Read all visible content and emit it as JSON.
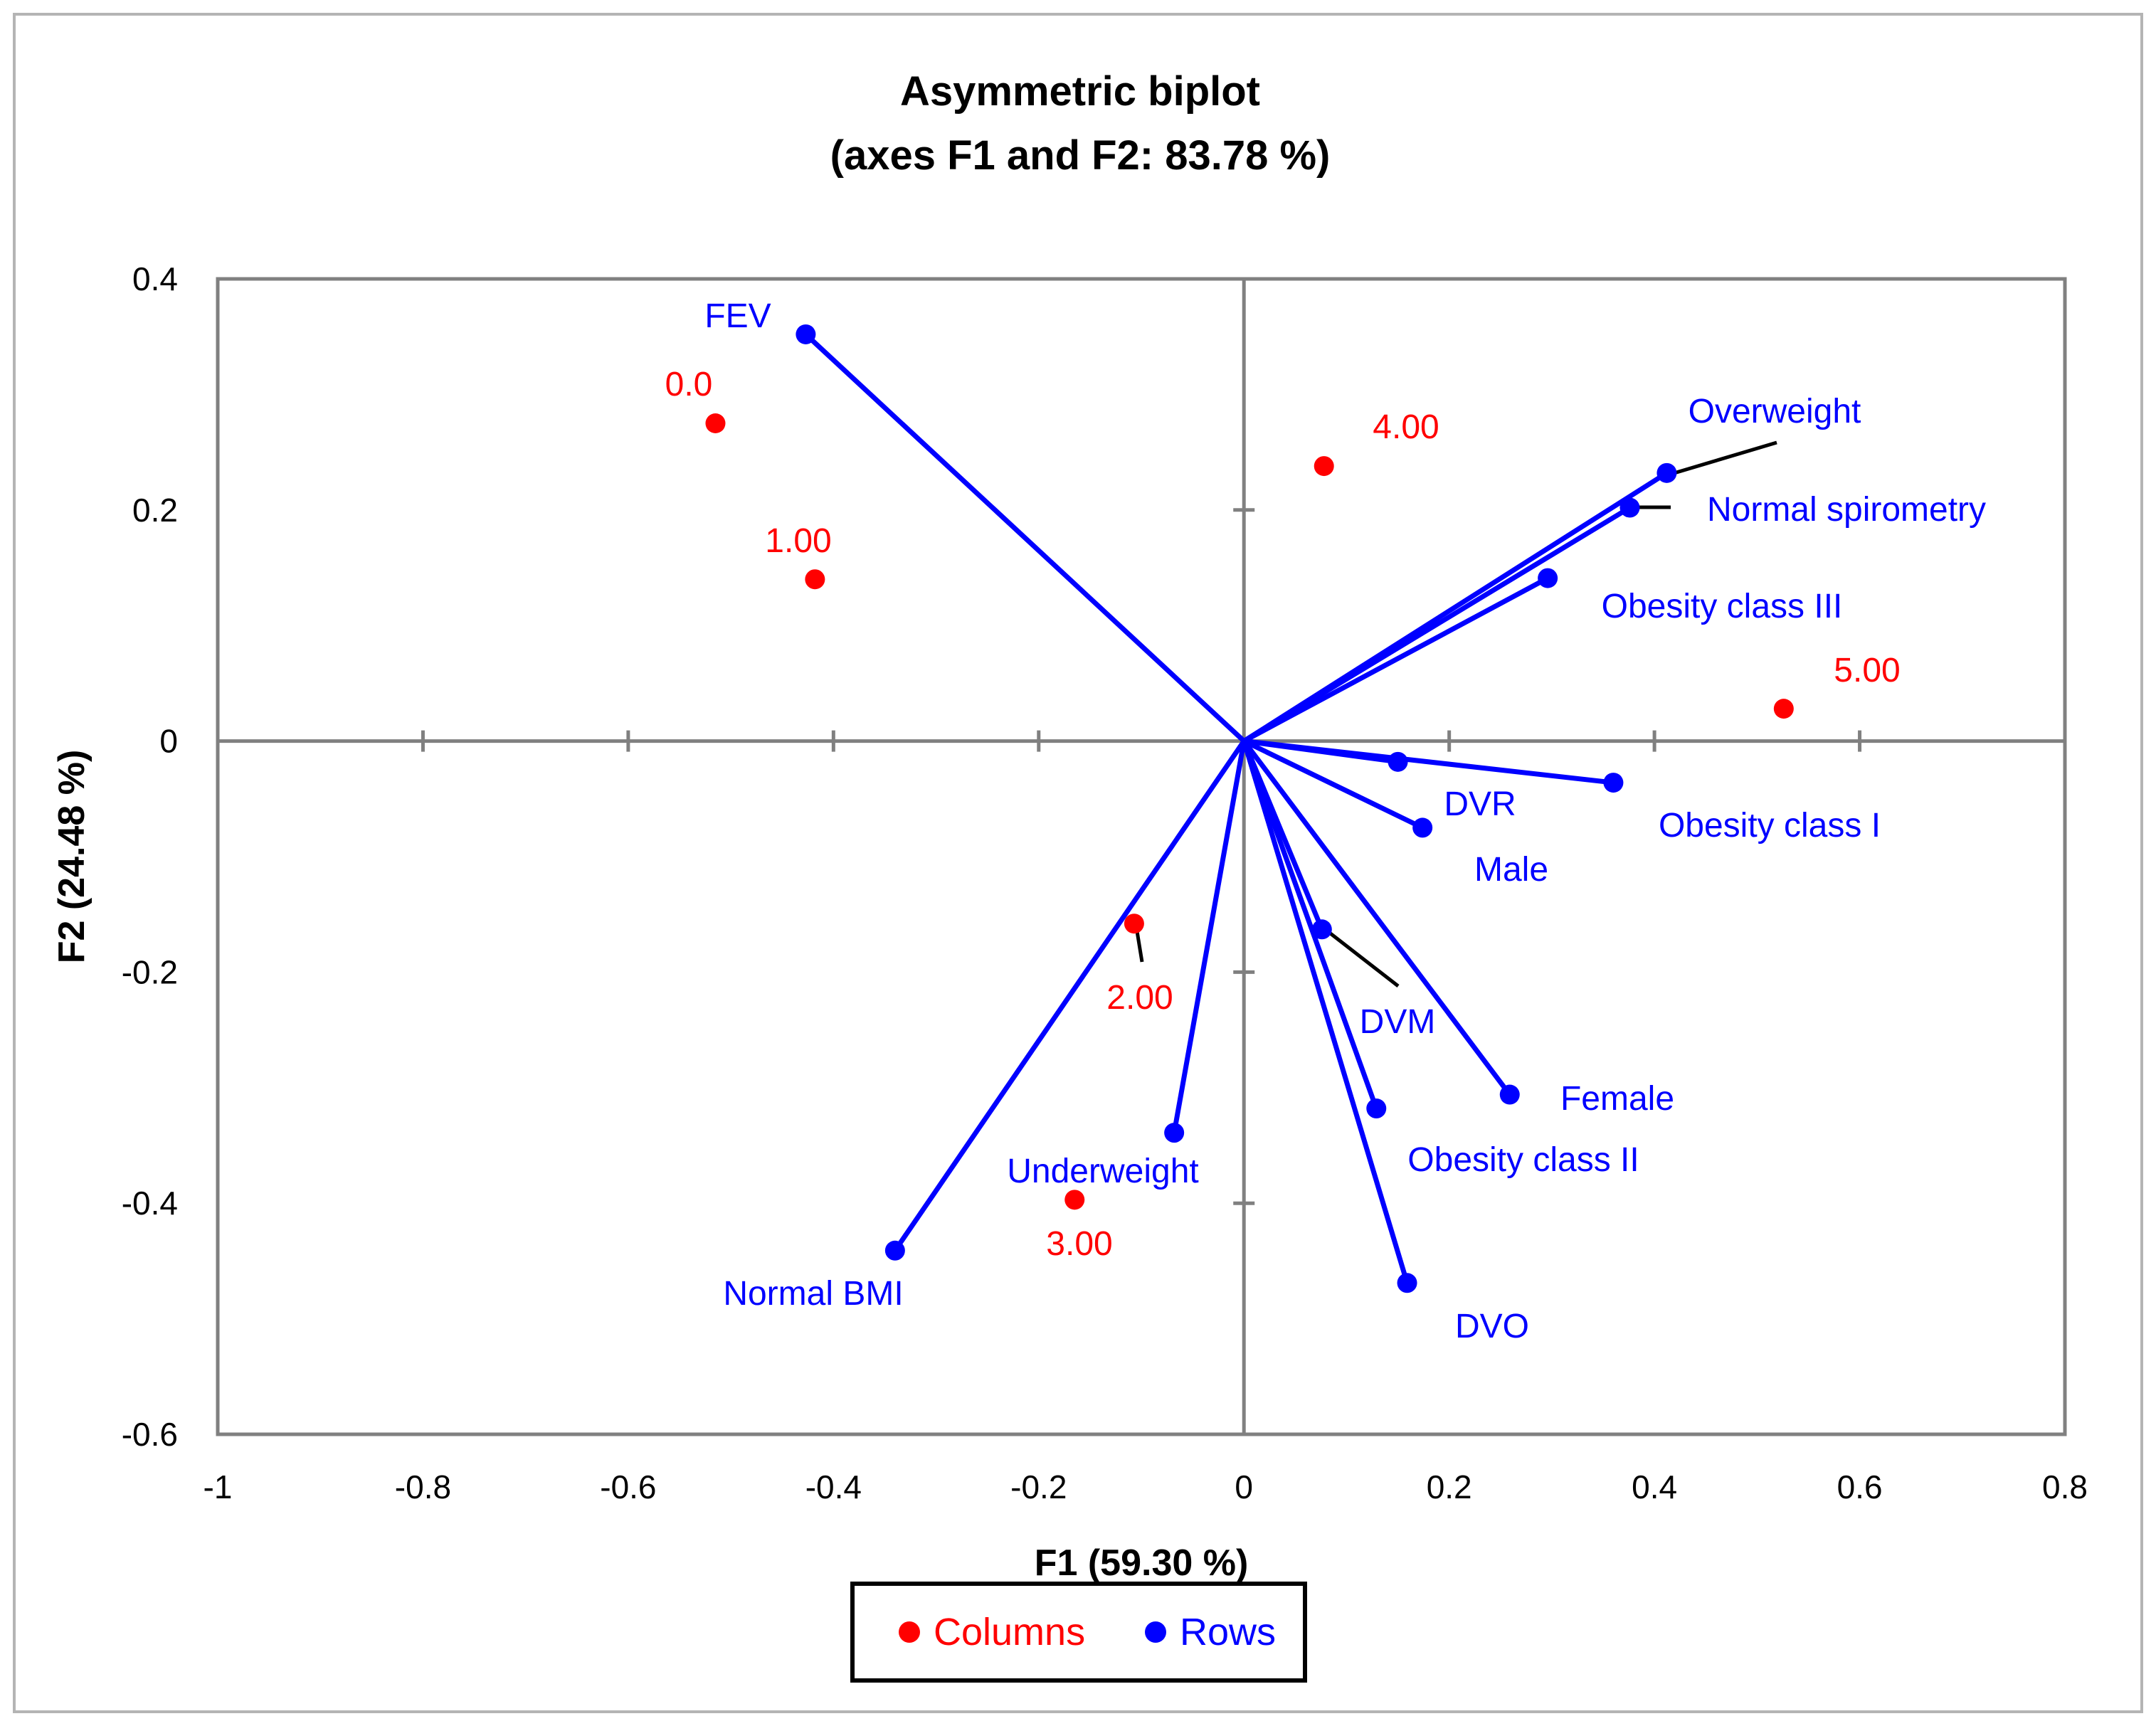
{
  "chart_data": {
    "type": "scatter",
    "subtype": "asymmetric biplot",
    "title": "Asymmetric biplot",
    "subtitle": "(axes F1 and F2: 83.78 %)",
    "xlabel": "F1 (59.30 %)",
    "ylabel": "F2 (24.48 %)",
    "xlim": [
      -1,
      0.8
    ],
    "ylim": [
      -0.6,
      0.4
    ],
    "xticks": [
      -1,
      -0.8,
      -0.6,
      -0.4,
      -0.2,
      0,
      0.2,
      0.4,
      0.6,
      0.8
    ],
    "xtick_labels": [
      "-1",
      "-0.8",
      "-0.6",
      "-0.4",
      "-0.2",
      "0",
      "0.2",
      "0.4",
      "0.6",
      "0.8"
    ],
    "yticks": [
      -0.6,
      -0.4,
      -0.2,
      0,
      0.2,
      0.4
    ],
    "ytick_labels": [
      "-0.6",
      "-0.4",
      "-0.2",
      "0",
      "0.2",
      "0.4"
    ],
    "grid": false,
    "legend": {
      "position": "bottom-center",
      "entries": [
        {
          "name": "Columns",
          "color": "#ff0000"
        },
        {
          "name": "Rows",
          "color": "#0000ff"
        }
      ]
    },
    "series": [
      {
        "name": "Columns",
        "color": "#ff0000",
        "points": [
          {
            "label": "0.0",
            "x": -0.515,
            "y": 0.275
          },
          {
            "label": "1.00",
            "x": -0.418,
            "y": 0.14
          },
          {
            "label": "2.00",
            "x": -0.107,
            "y": -0.158
          },
          {
            "label": "3.00",
            "x": -0.165,
            "y": -0.397
          },
          {
            "label": "4.00",
            "x": 0.078,
            "y": 0.238
          },
          {
            "label": "5.00",
            "x": 0.526,
            "y": 0.028
          }
        ]
      },
      {
        "name": "Rows",
        "color": "#0000ff",
        "vectors_from_origin": true,
        "points": [
          {
            "label": "FEV",
            "x": -0.427,
            "y": 0.352
          },
          {
            "label": "Overweight",
            "x": 0.412,
            "y": 0.232
          },
          {
            "label": "Normal spirometry",
            "x": 0.376,
            "y": 0.202
          },
          {
            "label": "Obesity class III",
            "x": 0.296,
            "y": 0.141
          },
          {
            "label": "DVR",
            "x": 0.15,
            "y": -0.018
          },
          {
            "label": "Obesity class I",
            "x": 0.36,
            "y": -0.036
          },
          {
            "label": "Male",
            "x": 0.174,
            "y": -0.075
          },
          {
            "label": "DVM",
            "x": 0.076,
            "y": -0.163
          },
          {
            "label": "Female",
            "x": 0.259,
            "y": -0.306
          },
          {
            "label": "Obesity class II",
            "x": 0.129,
            "y": -0.318
          },
          {
            "label": "DVO",
            "x": 0.159,
            "y": -0.469
          },
          {
            "label": "Underweight",
            "x": -0.068,
            "y": -0.339
          },
          {
            "label": "Normal BMI",
            "x": -0.34,
            "y": -0.441
          }
        ]
      }
    ]
  }
}
